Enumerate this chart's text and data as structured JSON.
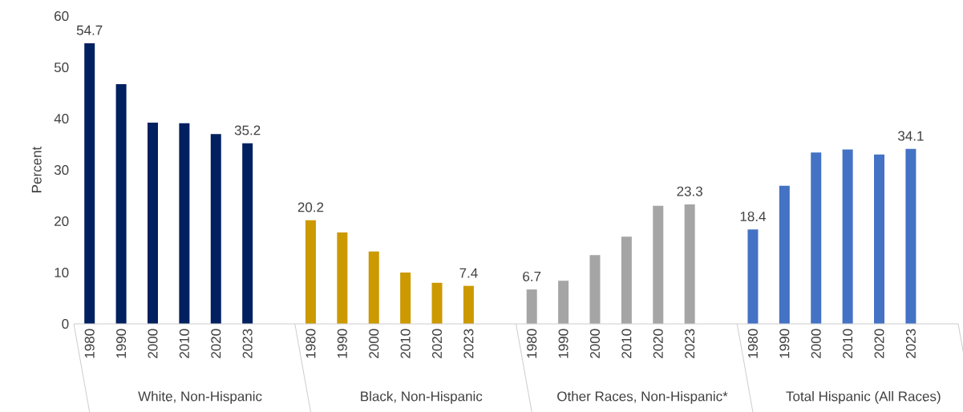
{
  "chart_data": {
    "type": "bar",
    "ylabel": "Percent",
    "annotations": [
      "White, Non-Hispanic",
      "Black, Non-Hispanic",
      "Other Races, Non-Hispanic*",
      "Total Hispanic (All Races)"
    ],
    "categories": [
      "1980",
      "1990",
      "2000",
      "2010",
      "2020",
      "2023",
      "1980",
      "1990",
      "2000",
      "2010",
      "2020",
      "2023",
      "1980",
      "1990",
      "2000",
      "2010",
      "2020",
      "2023",
      "1980",
      "1990",
      "2000",
      "2010",
      "2020",
      "2023"
    ],
    "series": [
      {
        "color": "#002060",
        "values": [
          54.7,
          46.7,
          39.2,
          39.1,
          37.0,
          35.2,
          null,
          null,
          null,
          null,
          null,
          null,
          null,
          null,
          null,
          null,
          null,
          null,
          null,
          null,
          null,
          null,
          null,
          null
        ],
        "value_labels": [
          "54.7",
          null,
          null,
          null,
          null,
          "35.2",
          null,
          null,
          null,
          null,
          null,
          null,
          null,
          null,
          null,
          null,
          null,
          null,
          null,
          null,
          null,
          null,
          null,
          null
        ]
      },
      {
        "color": "#cc9900",
        "values": [
          null,
          null,
          null,
          null,
          null,
          null,
          20.2,
          17.8,
          14.1,
          10.0,
          8.0,
          7.4,
          null,
          null,
          null,
          null,
          null,
          null,
          null,
          null,
          null,
          null,
          null,
          null
        ],
        "value_labels": [
          null,
          null,
          null,
          null,
          null,
          null,
          "20.2",
          null,
          null,
          null,
          null,
          "7.4",
          null,
          null,
          null,
          null,
          null,
          null,
          null,
          null,
          null,
          null,
          null,
          null
        ]
      },
      {
        "color": "#a5a5a5",
        "values": [
          null,
          null,
          null,
          null,
          null,
          null,
          null,
          null,
          null,
          null,
          null,
          null,
          6.7,
          8.4,
          13.4,
          17.0,
          23.0,
          23.3,
          null,
          null,
          null,
          null,
          null,
          null
        ],
        "value_labels": [
          null,
          null,
          null,
          null,
          null,
          null,
          null,
          null,
          null,
          null,
          null,
          null,
          "6.7",
          null,
          null,
          null,
          null,
          "23.3",
          null,
          null,
          null,
          null,
          null,
          null
        ]
      },
      {
        "color": "#4472c4",
        "values": [
          null,
          null,
          null,
          null,
          null,
          null,
          null,
          null,
          null,
          null,
          null,
          null,
          null,
          null,
          null,
          null,
          null,
          null,
          18.4,
          26.9,
          33.4,
          34.0,
          33.0,
          34.1
        ],
        "value_labels": [
          null,
          null,
          null,
          null,
          null,
          null,
          null,
          null,
          null,
          null,
          null,
          null,
          null,
          null,
          null,
          null,
          null,
          null,
          "18.4",
          null,
          null,
          null,
          null,
          "34.1"
        ]
      }
    ],
    "ylim": [
      0,
      60
    ],
    "yticks": [
      0,
      10,
      20,
      30,
      40,
      50,
      60
    ]
  }
}
